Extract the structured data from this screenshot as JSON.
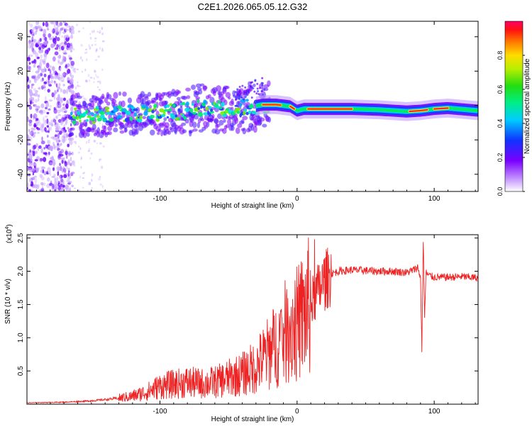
{
  "title": "C2E1.2026.065.05.12.G32",
  "colors": {
    "snr_line": "#ee2222",
    "spectrum_core": "#ff2020",
    "spectrum_mid": "#00ee55",
    "spectrum_low": "#1a3cff",
    "spectrum_edge": "#6f00ff",
    "spectrum_halo": "#c8a8ff"
  },
  "chart_data": [
    {
      "type": "heatmap",
      "title": "Spectrogram",
      "xlabel": "Height of straight line (km)",
      "ylabel": "Frequency (Hz)",
      "xlim": [
        -197,
        132
      ],
      "ylim": [
        -50,
        49
      ],
      "xticks": [
        -100,
        0,
        100
      ],
      "xtick_labels": [
        "-100",
        "0",
        "100"
      ],
      "yticks": [
        -40,
        -20,
        0,
        20,
        40
      ],
      "ytick_labels": [
        "-40",
        "-20",
        "0",
        "20",
        "40"
      ],
      "colorbar": {
        "label": "Normalized spectral amplitude",
        "range": [
          0,
          1
        ],
        "ticks": [
          0.0,
          0.2,
          0.4,
          0.6,
          0.8
        ],
        "tick_labels": [
          "0.0",
          "0.2",
          "0.4",
          "0.6",
          "0.8"
        ]
      },
      "ridge": {
        "x": [
          -165,
          -130,
          -100,
          -80,
          -65,
          -50,
          -35,
          -25,
          -15,
          -5,
          0,
          5,
          20,
          40,
          60,
          80,
          90,
          100,
          110,
          132
        ],
        "frequency": [
          -6,
          -5,
          -4.5,
          -3,
          -1,
          -3,
          -1,
          0.5,
          0.5,
          -0.5,
          -3,
          -2,
          -2,
          -2,
          -2.5,
          -3.5,
          -3,
          -2,
          -1.5,
          -3
        ]
      }
    },
    {
      "type": "line",
      "title": "SNR",
      "xlabel": "Height of straight line (km)",
      "ylabel": "SNR (10 * v/v)",
      "multiplier_label": "(x10",
      "multiplier_exp": "4",
      "multiplier_close": ")",
      "xlim": [
        -197,
        132
      ],
      "ylim": [
        0,
        25500
      ],
      "xticks": [
        -100,
        0,
        100
      ],
      "xtick_labels": [
        "-100",
        "0",
        "100"
      ],
      "yticks": [
        5000,
        10000,
        15000,
        20000,
        25000
      ],
      "ytick_labels": [
        "0.5",
        "1.0",
        "1.5",
        "2.0",
        "2.5"
      ],
      "series": [
        {
          "name": "SNR",
          "x": [
            -197,
            -170,
            -150,
            -140,
            -130,
            -120,
            -110,
            -100,
            -90,
            -80,
            -70,
            -60,
            -50,
            -40,
            -35,
            -30,
            -25,
            -20,
            -15,
            -10,
            -5,
            0,
            5,
            10,
            15,
            20,
            25,
            30,
            40,
            50,
            60,
            70,
            80,
            85,
            88,
            90,
            91,
            92,
            93,
            94,
            96,
            100,
            110,
            120,
            132
          ],
          "values": [
            200,
            300,
            500,
            700,
            900,
            1200,
            1800,
            2700,
            3000,
            3300,
            3100,
            3300,
            3900,
            4500,
            5100,
            5600,
            6800,
            7800,
            9000,
            10400,
            11600,
            12000,
            13500,
            15000,
            17000,
            18500,
            19600,
            20000,
            20200,
            20100,
            20000,
            20000,
            19800,
            20200,
            20600,
            19000,
            8000,
            24800,
            13000,
            19800,
            19400,
            19100,
            19100,
            19200,
            19000
          ]
        }
      ]
    }
  ]
}
